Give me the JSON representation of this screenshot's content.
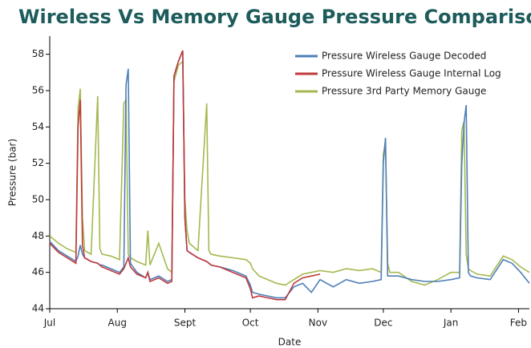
{
  "chart_data": {
    "type": "line",
    "title": "Wireless Vs Memory Gauge Pressure Comparison",
    "xlabel": "Date",
    "ylabel": "Pressure (bar)",
    "x": [
      0,
      4,
      8,
      12,
      13,
      14,
      15,
      16,
      19,
      22,
      23,
      24,
      28,
      32,
      34,
      35,
      36,
      37,
      40,
      44,
      45,
      46,
      50,
      54,
      56,
      57,
      59,
      61,
      62,
      63,
      64,
      68,
      72,
      73,
      74,
      78,
      84,
      90,
      92,
      93,
      96,
      100,
      104,
      108,
      112,
      116,
      120,
      124,
      130,
      136,
      142,
      148,
      152,
      153,
      154,
      155,
      156,
      160,
      166,
      172,
      178,
      184,
      188,
      189,
      190,
      191,
      192,
      193,
      196,
      202,
      208,
      212,
      216,
      220
    ],
    "xlim": [
      0,
      220
    ],
    "xticks": [
      {
        "value": 0,
        "label": "Jul"
      },
      {
        "value": 31,
        "label": "Aug"
      },
      {
        "value": 62,
        "label": "Sept"
      },
      {
        "value": 92,
        "label": "Oct"
      },
      {
        "value": 123,
        "label": "Nov"
      },
      {
        "value": 153,
        "label": "Dec"
      },
      {
        "value": 184,
        "label": "Jan"
      },
      {
        "value": 215,
        "label": "Feb"
      }
    ],
    "ylim": [
      44,
      59
    ],
    "yticks": [
      44,
      46,
      48,
      50,
      52,
      54,
      56,
      58
    ],
    "legend": "upper right",
    "series": [
      {
        "name": "Pressure Wireless Gauge Decoded",
        "color": "#4f7fb8",
        "values": [
          47.7,
          47.2,
          46.9,
          46.6,
          46.9,
          47.5,
          47.0,
          46.8,
          46.6,
          46.5,
          46.4,
          46.4,
          46.2,
          46.0,
          46.3,
          56.3,
          57.2,
          46.5,
          46.0,
          45.7,
          46.0,
          45.6,
          45.8,
          45.5,
          45.6,
          56.8,
          57.6,
          58.2,
          49,
          47.2,
          47.1,
          46.8,
          46.6,
          46.5,
          46.4,
          46.3,
          46.1,
          45.8,
          45.3,
          44.9,
          44.8,
          44.7,
          44.6,
          44.6,
          45.2,
          45.4,
          44.9,
          45.6,
          45.2,
          45.6,
          45.4,
          45.5,
          45.6,
          52.0,
          53.4,
          45.8,
          45.8,
          45.8,
          45.6,
          45.5,
          45.5,
          45.6,
          45.7,
          52,
          54.2,
          55.2,
          46.0,
          45.8,
          45.7,
          45.6,
          46.7,
          46.5,
          46.0,
          45.4
        ]
      },
      {
        "name": "Pressure Wireless Gauge Internal Log",
        "color": "#c0393b",
        "values": [
          47.6,
          47.1,
          46.8,
          46.5,
          54.0,
          55.5,
          47.5,
          46.8,
          46.6,
          46.5,
          46.4,
          46.3,
          46.1,
          45.9,
          46.2,
          46.5,
          46.8,
          46.3,
          45.9,
          45.7,
          46.0,
          45.5,
          45.7,
          45.4,
          45.5,
          56.8,
          57.6,
          58.2,
          49,
          47.2,
          47.1,
          46.8,
          46.6,
          46.5,
          46.4,
          46.3,
          46.0,
          45.7,
          45.1,
          44.6,
          44.7,
          44.6,
          44.5,
          44.5,
          45.4,
          45.7,
          45.8,
          45.9,
          null,
          null,
          null,
          null,
          null,
          null,
          null,
          null,
          null,
          null,
          null,
          null,
          null,
          null,
          null,
          null,
          null,
          null,
          null,
          null,
          null,
          null,
          null,
          null,
          null,
          null
        ]
      },
      {
        "name": "Pressure 3rd Party Memory Gauge",
        "color": "#a3b94f",
        "values": [
          48.0,
          47.6,
          47.3,
          47.1,
          55.0,
          56.1,
          49,
          47.2,
          47.0,
          55.7,
          47.3,
          47.0,
          46.9,
          46.7,
          55.3,
          55.5,
          47,
          46.8,
          46.6,
          46.4,
          48.3,
          46.4,
          47.6,
          46.2,
          46.0,
          56.5,
          57.4,
          57.6,
          50,
          48.3,
          47.6,
          47.2,
          55.3,
          47.2,
          47.0,
          46.9,
          46.8,
          46.7,
          46.5,
          46.2,
          45.8,
          45.6,
          45.4,
          45.3,
          45.6,
          45.9,
          46.0,
          46.1,
          46.0,
          46.2,
          46.1,
          46.2,
          46.0,
          52.5,
          53.2,
          46.5,
          46.0,
          46.0,
          45.5,
          45.3,
          45.6,
          46.0,
          46.0,
          53.8,
          54.3,
          47,
          46.2,
          46.1,
          45.9,
          45.8,
          46.9,
          46.7,
          46.3,
          46.0
        ]
      }
    ]
  }
}
